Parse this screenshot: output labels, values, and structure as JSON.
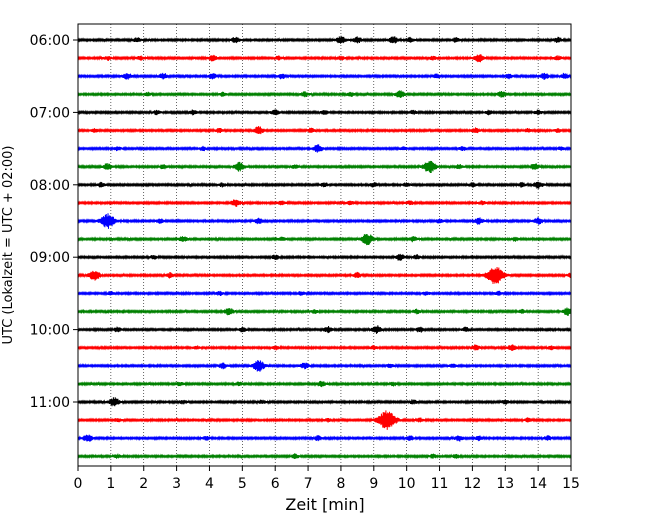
{
  "chart_data": {
    "type": "line",
    "subtype": "helicorder",
    "xlabel": "Zeit  [min]",
    "ylabel": "UTC (Lokalzeit = UTC + 02:00)",
    "xlim": [
      0,
      15
    ],
    "x_ticks": [
      0,
      1,
      2,
      3,
      4,
      5,
      6,
      7,
      8,
      9,
      10,
      11,
      12,
      13,
      14,
      15
    ],
    "y_tick_labels": [
      "06:00",
      "07:00",
      "08:00",
      "09:00",
      "10:00",
      "11:00"
    ],
    "rows_per_hour": 4,
    "row_minutes": 15,
    "grid": "vertical dotted at each minute",
    "colors": [
      "#000000",
      "#ff0000",
      "#0000ff",
      "#008000"
    ],
    "rows": [
      {
        "start": "06:00",
        "events": [
          [
            1.8,
            0.35
          ],
          [
            4.8,
            0.45
          ],
          [
            8.0,
            0.6
          ],
          [
            8.5,
            0.5
          ],
          [
            9.6,
            0.55
          ],
          [
            10.1,
            0.4
          ],
          [
            11.5,
            0.35
          ],
          [
            14.6,
            0.4
          ]
        ]
      },
      {
        "start": "06:15",
        "events": [
          [
            0.9,
            0.3
          ],
          [
            1.9,
            0.35
          ],
          [
            4.1,
            0.45
          ],
          [
            6.1,
            0.3
          ],
          [
            8.0,
            0.3
          ],
          [
            10.8,
            0.3
          ],
          [
            12.2,
            0.6
          ],
          [
            14.6,
            0.35
          ]
        ]
      },
      {
        "start": "06:30",
        "events": [
          [
            1.5,
            0.5
          ],
          [
            2.6,
            0.45
          ],
          [
            4.1,
            0.45
          ],
          [
            6.2,
            0.4
          ],
          [
            10.9,
            0.35
          ],
          [
            13.1,
            0.35
          ],
          [
            14.2,
            0.5
          ],
          [
            14.8,
            0.45
          ]
        ]
      },
      {
        "start": "06:45",
        "events": [
          [
            2.1,
            0.3
          ],
          [
            4.4,
            0.3
          ],
          [
            6.9,
            0.4
          ],
          [
            8.3,
            0.35
          ],
          [
            9.8,
            0.55
          ],
          [
            12.9,
            0.5
          ]
        ]
      },
      {
        "start": "07:00",
        "events": [
          [
            2.4,
            0.35
          ],
          [
            3.5,
            0.35
          ],
          [
            6.0,
            0.4
          ],
          [
            7.5,
            0.35
          ],
          [
            10.2,
            0.3
          ],
          [
            12.5,
            0.35
          ],
          [
            14.0,
            0.35
          ]
        ]
      },
      {
        "start": "07:15",
        "events": [
          [
            0.5,
            0.3
          ],
          [
            4.3,
            0.35
          ],
          [
            5.5,
            0.6
          ],
          [
            7.1,
            0.35
          ],
          [
            12.1,
            0.4
          ],
          [
            13.7,
            0.3
          ],
          [
            14.6,
            0.3
          ]
        ]
      },
      {
        "start": "07:30",
        "events": [
          [
            1.2,
            0.3
          ],
          [
            3.8,
            0.3
          ],
          [
            7.3,
            0.6
          ],
          [
            9.9,
            0.3
          ],
          [
            11.7,
            0.3
          ],
          [
            14.7,
            0.3
          ]
        ]
      },
      {
        "start": "07:45",
        "events": [
          [
            0.9,
            0.5
          ],
          [
            2.6,
            0.35
          ],
          [
            4.9,
            0.7
          ],
          [
            6.6,
            0.3
          ],
          [
            10.7,
            1.0
          ],
          [
            11.6,
            0.35
          ],
          [
            13.9,
            0.5
          ]
        ]
      },
      {
        "start": "08:00",
        "events": [
          [
            0.7,
            0.35
          ],
          [
            4.4,
            0.3
          ],
          [
            7.5,
            0.3
          ],
          [
            9.0,
            0.35
          ],
          [
            10.0,
            0.3
          ],
          [
            12.0,
            0.35
          ],
          [
            13.5,
            0.35
          ],
          [
            14.0,
            0.55
          ]
        ]
      },
      {
        "start": "08:15",
        "events": [
          [
            4.8,
            0.6
          ],
          [
            6.2,
            0.3
          ],
          [
            8.3,
            0.3
          ],
          [
            10.1,
            0.3
          ],
          [
            12.3,
            0.3
          ]
        ]
      },
      {
        "start": "08:30",
        "events": [
          [
            0.9,
            1.2
          ],
          [
            2.5,
            0.35
          ],
          [
            5.5,
            0.45
          ],
          [
            11.0,
            0.35
          ],
          [
            12.2,
            0.5
          ],
          [
            14.0,
            0.5
          ]
        ]
      },
      {
        "start": "08:45",
        "events": [
          [
            3.2,
            0.45
          ],
          [
            6.2,
            0.35
          ],
          [
            8.8,
            0.9
          ],
          [
            10.2,
            0.4
          ],
          [
            13.3,
            0.3
          ]
        ]
      },
      {
        "start": "09:00",
        "events": [
          [
            2.3,
            0.3
          ],
          [
            6.0,
            0.35
          ],
          [
            9.8,
            0.5
          ],
          [
            10.3,
            0.35
          ]
        ]
      },
      {
        "start": "09:15",
        "events": [
          [
            0.5,
            0.8
          ],
          [
            2.8,
            0.4
          ],
          [
            8.5,
            0.4
          ],
          [
            12.7,
            1.5
          ],
          [
            15.0,
            0.35
          ]
        ]
      },
      {
        "start": "09:30",
        "events": [
          [
            1.0,
            0.3
          ],
          [
            4.3,
            0.3
          ],
          [
            6.8,
            0.3
          ],
          [
            10.6,
            0.3
          ],
          [
            12.8,
            0.3
          ]
        ]
      },
      {
        "start": "09:45",
        "events": [
          [
            4.6,
            0.55
          ],
          [
            7.2,
            0.3
          ],
          [
            10.3,
            0.35
          ],
          [
            13.5,
            0.3
          ],
          [
            14.9,
            0.6
          ]
        ]
      },
      {
        "start": "10:00",
        "events": [
          [
            1.2,
            0.35
          ],
          [
            5.0,
            0.35
          ],
          [
            7.6,
            0.45
          ],
          [
            9.1,
            0.6
          ],
          [
            10.4,
            0.4
          ],
          [
            11.8,
            0.35
          ]
        ]
      },
      {
        "start": "10:15",
        "events": [
          [
            3.6,
            0.3
          ],
          [
            6.0,
            0.3
          ],
          [
            9.0,
            0.3
          ],
          [
            12.1,
            0.45
          ],
          [
            13.2,
            0.45
          ],
          [
            14.4,
            0.3
          ]
        ]
      },
      {
        "start": "10:30",
        "events": [
          [
            4.4,
            0.45
          ],
          [
            5.5,
            0.9
          ],
          [
            6.9,
            0.45
          ],
          [
            9.5,
            0.3
          ],
          [
            11.4,
            0.3
          ]
        ]
      },
      {
        "start": "10:45",
        "events": [
          [
            3.1,
            0.3
          ],
          [
            4.9,
            0.3
          ],
          [
            7.4,
            0.45
          ],
          [
            9.6,
            0.3
          ]
        ]
      },
      {
        "start": "11:00",
        "events": [
          [
            1.1,
            0.7
          ],
          [
            3.2,
            0.3
          ],
          [
            5.6,
            0.3
          ],
          [
            10.2,
            0.35
          ],
          [
            13.0,
            0.35
          ]
        ]
      },
      {
        "start": "11:15",
        "events": [
          [
            1.2,
            0.3
          ],
          [
            7.6,
            0.3
          ],
          [
            9.4,
            1.6
          ],
          [
            10.4,
            0.3
          ],
          [
            13.7,
            0.3
          ]
        ]
      },
      {
        "start": "11:30",
        "events": [
          [
            0.3,
            0.6
          ],
          [
            3.9,
            0.35
          ],
          [
            7.3,
            0.35
          ],
          [
            10.1,
            0.35
          ],
          [
            11.6,
            0.45
          ],
          [
            12.2,
            0.35
          ],
          [
            14.3,
            0.35
          ]
        ]
      },
      {
        "start": "11:45",
        "events": [
          [
            1.2,
            0.3
          ],
          [
            6.6,
            0.35
          ],
          [
            10.8,
            0.3
          ],
          [
            11.5,
            0.3
          ]
        ]
      }
    ]
  }
}
